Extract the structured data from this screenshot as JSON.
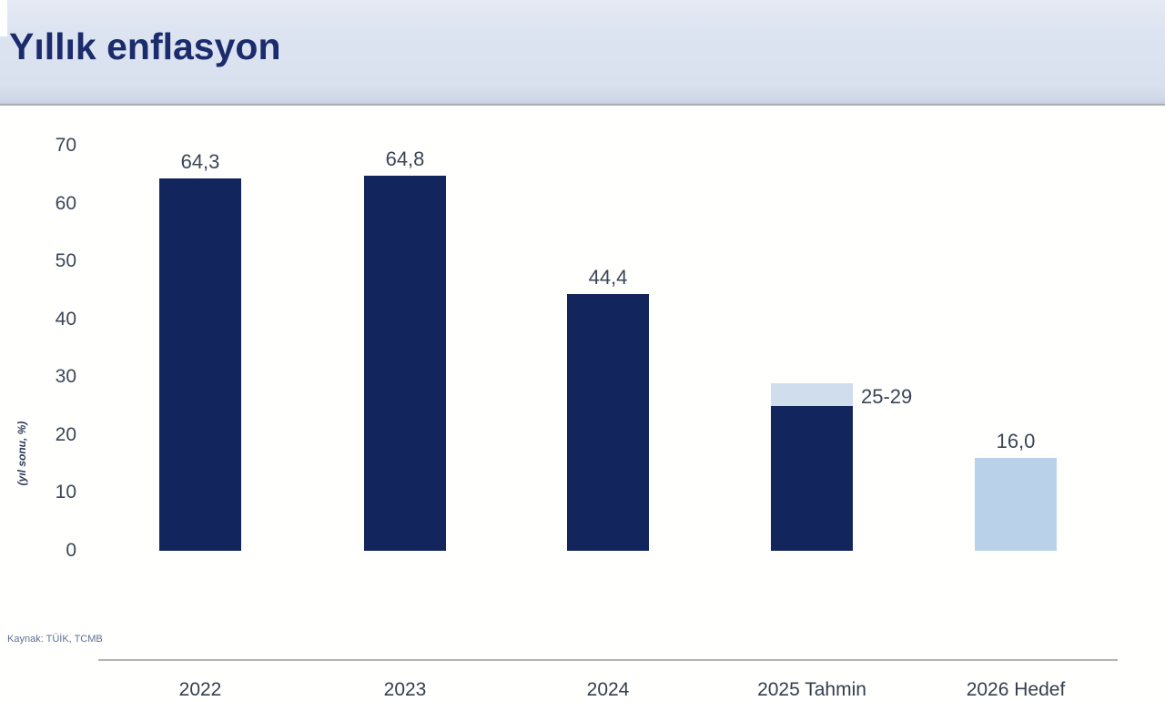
{
  "header": {
    "title": "Yıllık enflasyon"
  },
  "footer": {
    "source": "Kaynak: TÜİK, TCMB"
  },
  "chart_data": {
    "type": "bar",
    "title": "Yıllık enflasyon",
    "xlabel": "",
    "ylabel": "(yıl sonu, %)",
    "ylim": [
      0,
      70
    ],
    "yticks": [
      0,
      10,
      20,
      30,
      40,
      50,
      60,
      70
    ],
    "grid": false,
    "legend": "none",
    "categories": [
      "2022",
      "2023",
      "2024",
      "2025 Tahmin",
      "2026 Hedef"
    ],
    "bars": [
      {
        "category": "2022",
        "value": 64.3,
        "value_label": "64,3",
        "label_position": "above",
        "segments": [
          {
            "from": 0,
            "to": 64.3,
            "color": "#12265d"
          }
        ]
      },
      {
        "category": "2023",
        "value": 64.8,
        "value_label": "64,8",
        "label_position": "above",
        "segments": [
          {
            "from": 0,
            "to": 64.8,
            "color": "#12265d"
          }
        ]
      },
      {
        "category": "2024",
        "value": 44.4,
        "value_label": "44,4",
        "label_position": "above",
        "segments": [
          {
            "from": 0,
            "to": 44.4,
            "color": "#12265d"
          }
        ]
      },
      {
        "category": "2025 Tahmin",
        "value_range": [
          25,
          29
        ],
        "value_label": "25-29",
        "label_position": "right",
        "segments": [
          {
            "from": 0,
            "to": 25,
            "color": "#12265d"
          },
          {
            "from": 25,
            "to": 29,
            "color": "#cfddec"
          }
        ]
      },
      {
        "category": "2026 Hedef",
        "value": 16.0,
        "value_label": "16,0",
        "label_position": "above",
        "segments": [
          {
            "from": 0,
            "to": 16,
            "color": "#b9d2ea"
          }
        ]
      }
    ],
    "colors": {
      "bar_dark": "#12265d",
      "bar_light": "#b9d2ea",
      "bar_forecast_cap": "#cfddec",
      "axis_line": "#b5b5b5",
      "tick_text": "#3b4656",
      "title_text": "#1b2b6b",
      "source_text": "#5e6f95",
      "header_bg": "#dde4f1"
    }
  }
}
